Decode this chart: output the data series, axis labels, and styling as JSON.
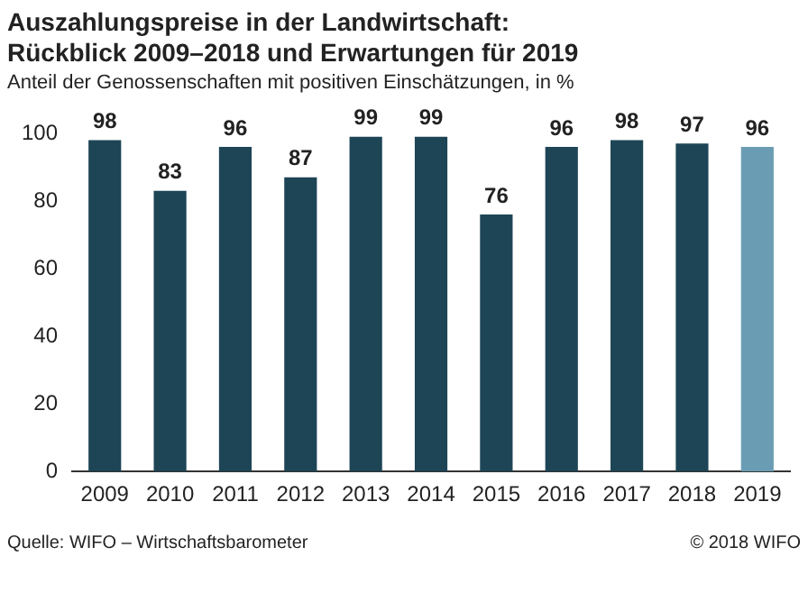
{
  "chart_data": {
    "type": "bar",
    "title": "Auszahlungspreise in der Landwirtschaft: Rückblick 2009–2018 und Erwartungen für 2019",
    "subtitle": "Anteil der Genossenschaften mit positiven Einschätzungen, in %",
    "categories": [
      "2009",
      "2010",
      "2011",
      "2012",
      "2013",
      "2014",
      "2015",
      "2016",
      "2017",
      "2018",
      "2019"
    ],
    "values": [
      98,
      83,
      96,
      87,
      99,
      99,
      76,
      96,
      98,
      97,
      96
    ],
    "colors": [
      "#1d4556",
      "#1d4556",
      "#1d4556",
      "#1d4556",
      "#1d4556",
      "#1d4556",
      "#1d4556",
      "#1d4556",
      "#1d4556",
      "#1d4556",
      "#6a9db3"
    ],
    "ylim": [
      0,
      100
    ],
    "yticks": [
      0,
      20,
      40,
      60,
      80,
      100
    ],
    "grid": false,
    "legend": false,
    "data_labels": true,
    "annotations": [
      "Quelle: WIFO – Wirtschaftsbarometer",
      "© 2018 WIFO"
    ]
  }
}
